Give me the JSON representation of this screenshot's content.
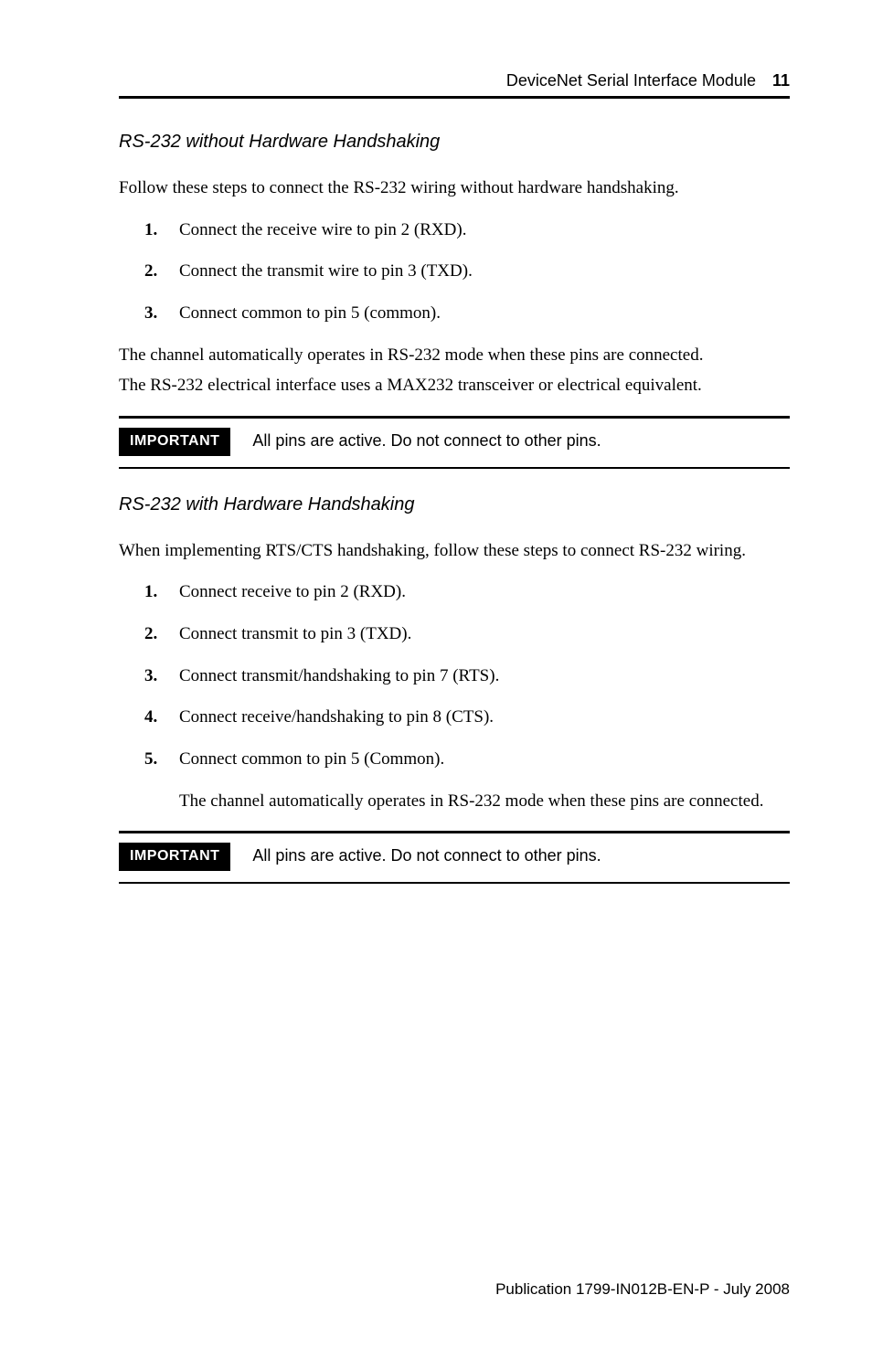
{
  "header": {
    "title": "DeviceNet Serial Interface Module",
    "page_number": "11"
  },
  "section1": {
    "heading": "RS-232 without Hardware Handshaking",
    "intro": "Follow these steps to connect the RS-232 wiring without hardware handshaking.",
    "steps": {
      "s1": "Connect the receive wire to pin 2 (RXD).",
      "s2": "Connect the transmit wire to pin 3 (TXD).",
      "s3": "Connect common to pin 5 (common)."
    },
    "after1": "The channel automatically operates in RS-232 mode when these pins are connected.",
    "after2": "The RS-232 electrical interface uses a MAX232 transceiver or electrical equivalent."
  },
  "important1": {
    "label": "IMPORTANT",
    "text": "All pins are active. Do not connect to other pins."
  },
  "section2": {
    "heading": "RS-232 with Hardware Handshaking",
    "intro": "When implementing RTS/CTS handshaking, follow these steps to connect RS-232 wiring.",
    "steps": {
      "s1": "Connect receive to pin 2 (RXD).",
      "s2": "Connect transmit to pin 3 (TXD).",
      "s3": "Connect transmit/handshaking to pin 7 (RTS).",
      "s4": "Connect receive/handshaking to pin 8 (CTS).",
      "s5": "Connect common to pin 5 (Common)."
    },
    "follow": "The channel automatically operates in RS-232 mode when these pins are connected."
  },
  "important2": {
    "label": "IMPORTANT",
    "text": "All pins are active. Do not connect to other pins."
  },
  "footer": {
    "text": "Publication 1799-IN012B-EN-P - July 2008"
  },
  "nums": {
    "n1": "1.",
    "n2": "2.",
    "n3": "3.",
    "n4": "4.",
    "n5": "5."
  }
}
